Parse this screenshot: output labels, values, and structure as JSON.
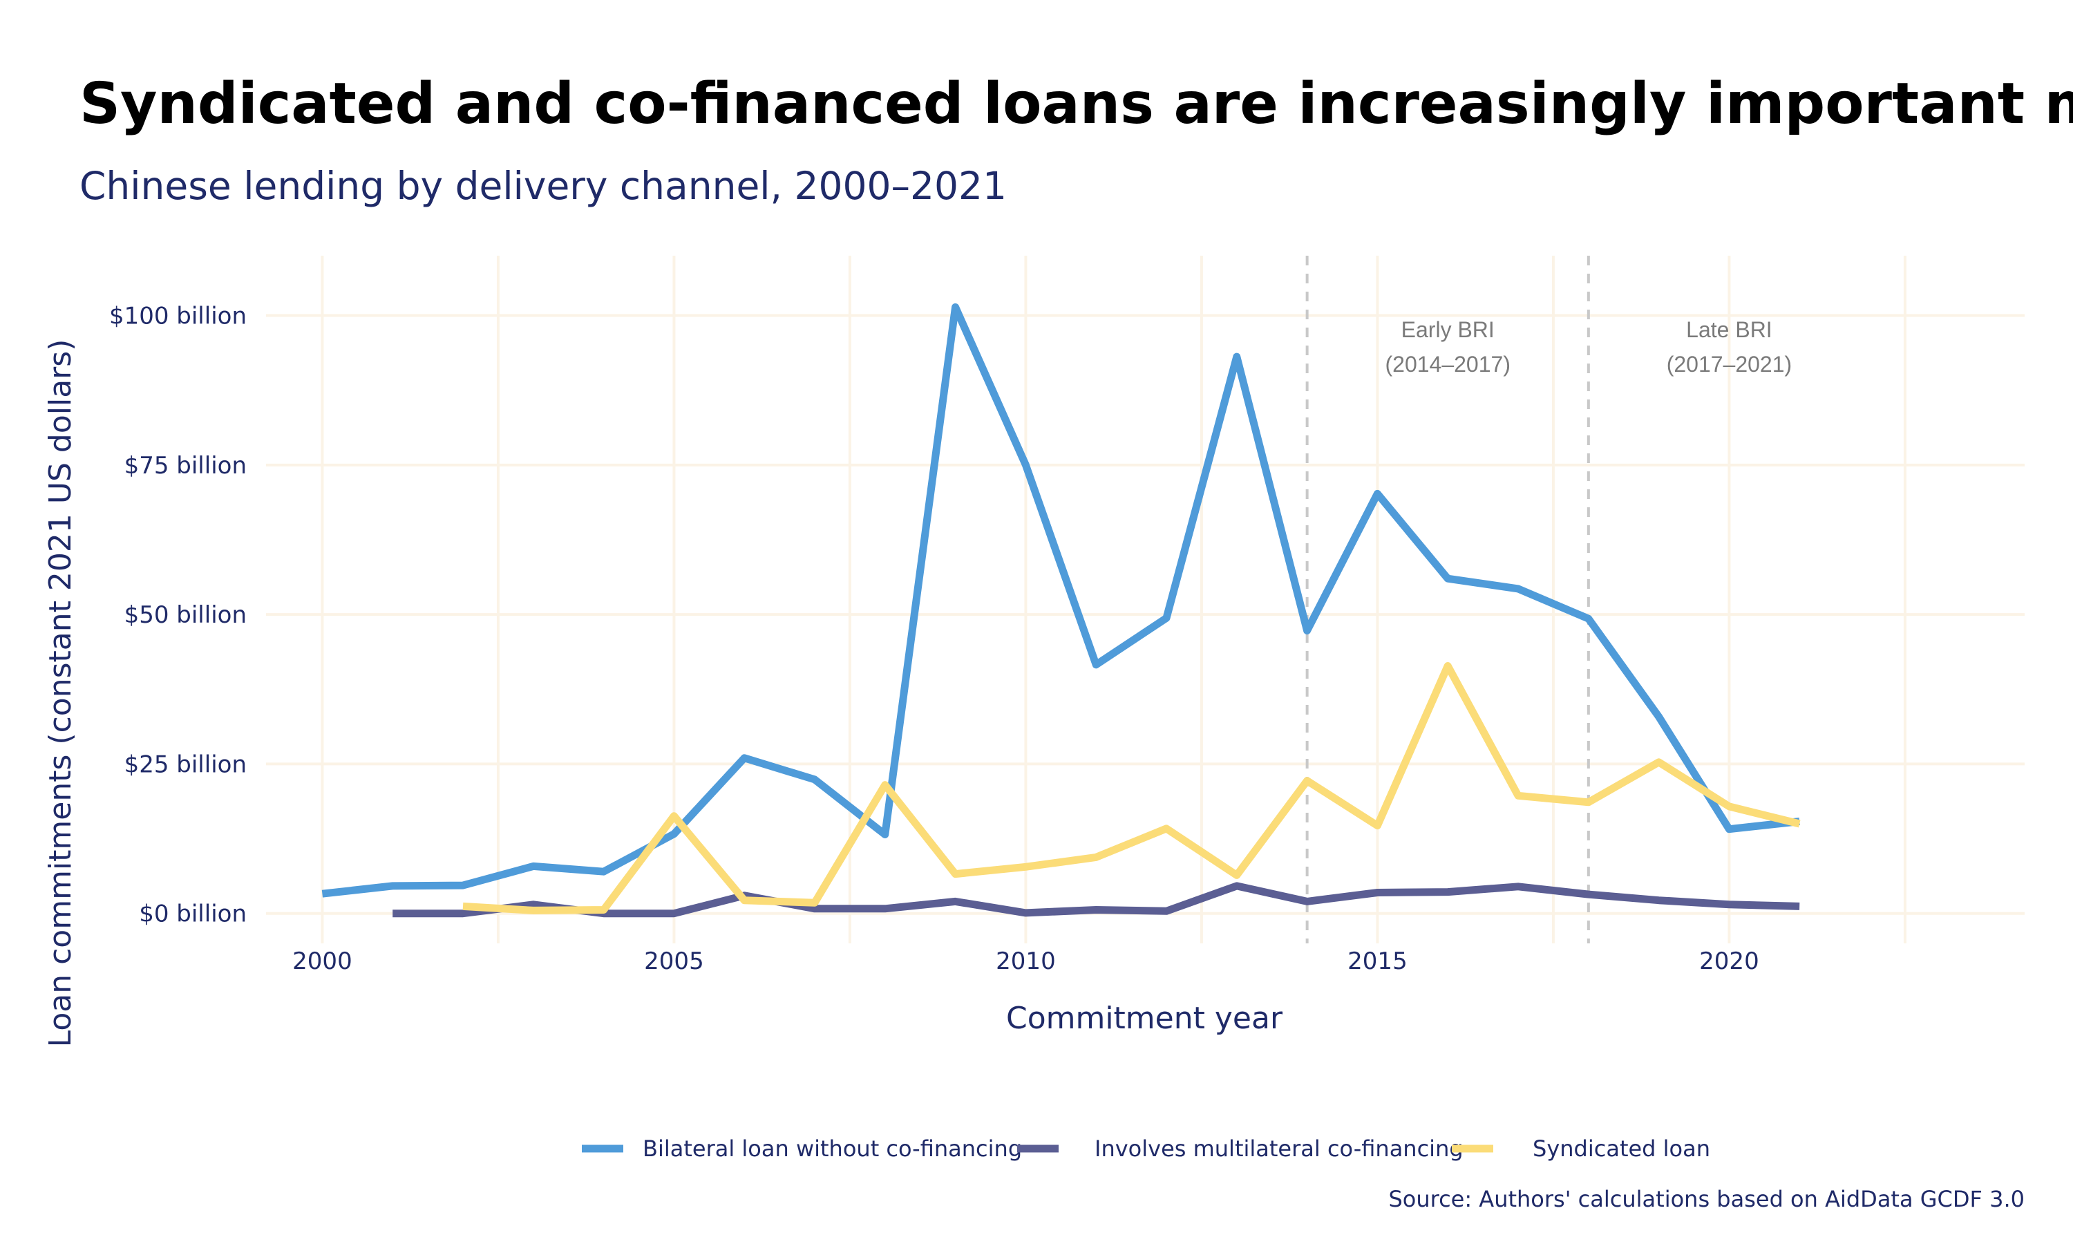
{
  "chart_data": {
    "type": "line",
    "title": "Syndicated and co-financed loans are increasingly important mod",
    "subtitle": "Chinese lending by delivery channel, 2000–2021",
    "xlabel": "Commitment year",
    "ylabel": "Loan commitments (constant 2021 US dollars)",
    "xlim": [
      1999.2,
      2024.2
    ],
    "ylim": [
      -5,
      110
    ],
    "x_ticks": [
      2000,
      2005,
      2010,
      2015,
      2020
    ],
    "x_tick_labels": [
      "2000",
      "2005",
      "2010",
      "2015",
      "2020"
    ],
    "x_minor_ticks": [
      2002.5,
      2007.5,
      2012.5,
      2017.5,
      2022.5
    ],
    "y_ticks": [
      0,
      25,
      50,
      75,
      100
    ],
    "y_tick_labels": [
      "$0 billion",
      "$25 billion",
      "$50 billion",
      "$75 billion",
      "$100 billion"
    ],
    "grid": true,
    "legend_position": "bottom",
    "series": [
      {
        "name": "Bilateral loan without co-financing",
        "color": "#4f9bd9",
        "x": [
          2000,
          2001,
          2002,
          2003,
          2004,
          2005,
          2006,
          2007,
          2008,
          2009,
          2010,
          2011,
          2012,
          2013,
          2014,
          2015,
          2016,
          2017,
          2018,
          2019,
          2020,
          2021
        ],
        "values": [
          3.3,
          4.6,
          4.7,
          7.9,
          7.0,
          13.3,
          26.0,
          22.4,
          13.2,
          101.4,
          75.0,
          41.6,
          49.4,
          93.1,
          47.3,
          70.2,
          56.0,
          54.3,
          49.3,
          32.9,
          14.1,
          15.4
        ]
      },
      {
        "name": "Involves multilateral co-financing",
        "color": "#5b5e93",
        "x": [
          2001,
          2002,
          2003,
          2004,
          2005,
          2006,
          2007,
          2008,
          2009,
          2010,
          2011,
          2012,
          2013,
          2014,
          2015,
          2016,
          2017,
          2018,
          2019,
          2020,
          2021
        ],
        "values": [
          0.0,
          0.0,
          1.5,
          0.0,
          0.0,
          3.0,
          0.8,
          0.8,
          2.0,
          0.1,
          0.6,
          0.4,
          4.6,
          2.0,
          3.5,
          3.6,
          4.5,
          3.2,
          2.2,
          1.5,
          1.2
        ]
      },
      {
        "name": "Syndicated loan",
        "color": "#fbdc78",
        "x": [
          2002,
          2003,
          2004,
          2005,
          2006,
          2007,
          2008,
          2009,
          2010,
          2011,
          2012,
          2013,
          2014,
          2015,
          2016,
          2017,
          2018,
          2019,
          2020,
          2021
        ],
        "values": [
          1.2,
          0.5,
          0.6,
          16.3,
          2.2,
          1.8,
          21.5,
          6.6,
          7.8,
          9.4,
          14.2,
          6.4,
          22.2,
          14.7,
          41.4,
          19.7,
          18.6,
          25.3,
          17.9,
          15.0
        ]
      }
    ],
    "vlines": [
      2014,
      2018
    ],
    "annotations": [
      {
        "x": 2016,
        "line1": "Early BRI",
        "line2": "(2014–2017)"
      },
      {
        "x": 2020,
        "line1": "Late BRI",
        "line2": "(2017–2021)"
      }
    ],
    "source": "Source: Authors' calculations based on AidData GCDF 3.0"
  }
}
